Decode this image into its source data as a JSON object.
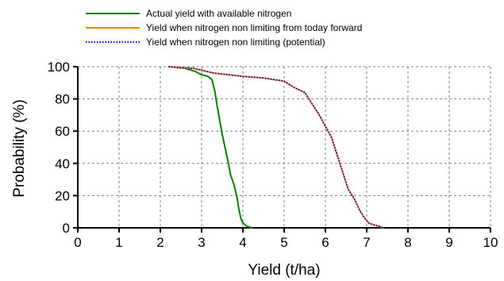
{
  "chart_data": {
    "type": "line",
    "xlabel": "Yield (t/ha)",
    "ylabel": "Probability (%)",
    "xlim": [
      0,
      10
    ],
    "ylim": [
      0,
      100
    ],
    "xticks": [
      0,
      1,
      2,
      3,
      4,
      5,
      6,
      7,
      8,
      9,
      10
    ],
    "yticks": [
      0,
      20,
      40,
      60,
      80,
      100
    ],
    "grid": true,
    "legend_position": "top",
    "series": [
      {
        "name": "Actual yield with available nitrogen",
        "color": "#008000",
        "style": "solid",
        "x": [
          2.2,
          2.6,
          2.85,
          3.0,
          3.15,
          3.25,
          3.32,
          3.38,
          3.45,
          3.5,
          3.55,
          3.6,
          3.65,
          3.7,
          3.78,
          3.85,
          3.9,
          3.95,
          4.0,
          4.1,
          4.22
        ],
        "y": [
          100,
          99,
          97,
          95,
          94,
          92,
          85,
          75,
          65,
          58,
          52,
          46,
          40,
          33,
          27,
          20,
          12,
          6,
          3,
          1,
          0
        ]
      },
      {
        "name": "Yield when nitrogen non limiting from today forward",
        "color": "#ff8000",
        "style": "solid",
        "x": [
          2.2,
          2.8,
          3.3,
          4.0,
          4.5,
          5.0,
          5.25,
          5.5,
          5.7,
          5.85,
          6.0,
          6.15,
          6.25,
          6.35,
          6.45,
          6.55,
          6.7,
          6.85,
          6.95,
          7.05,
          7.15,
          7.3,
          7.4
        ],
        "y": [
          100,
          99,
          96,
          94,
          93,
          91,
          87,
          84,
          76,
          70,
          63,
          56,
          48,
          40,
          32,
          24,
          18,
          10,
          6,
          3,
          2,
          1,
          0
        ]
      },
      {
        "name": "Yield when nitrogen non limiting (potential)",
        "color": "#0000ff",
        "style": "dotted",
        "x": [
          2.2,
          2.8,
          3.3,
          4.0,
          4.5,
          5.0,
          5.25,
          5.5,
          5.7,
          5.85,
          6.0,
          6.15,
          6.25,
          6.35,
          6.45,
          6.55,
          6.7,
          6.85,
          6.95,
          7.05,
          7.15,
          7.3,
          7.4
        ],
        "y": [
          100,
          99,
          96,
          94,
          93,
          91,
          87,
          84,
          76,
          70,
          63,
          56,
          48,
          40,
          32,
          24,
          18,
          10,
          6,
          3,
          2,
          1,
          0
        ]
      }
    ]
  }
}
